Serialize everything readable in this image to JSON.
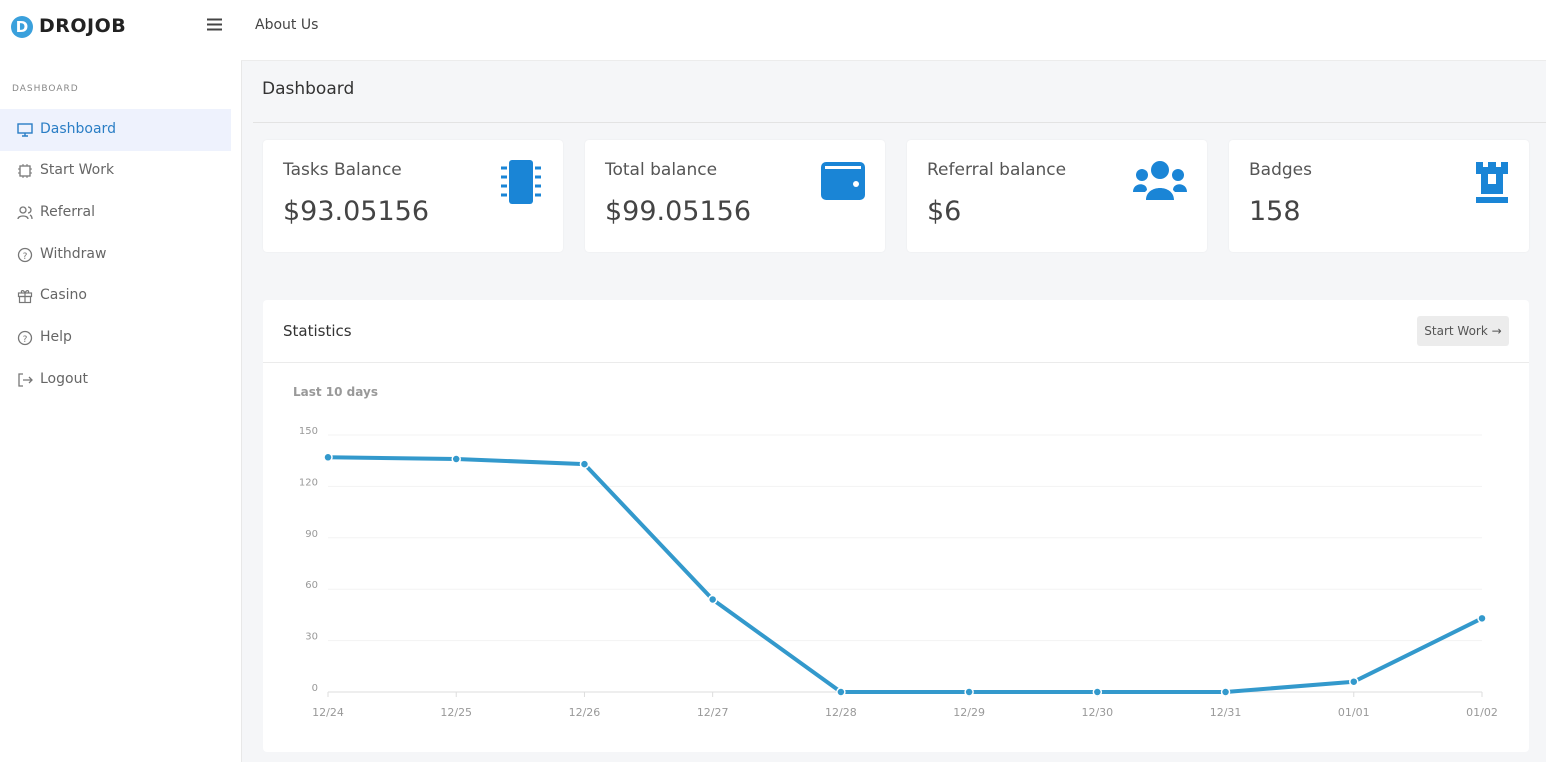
{
  "brand": "DROJOB",
  "top_nav": {
    "link": "About Us"
  },
  "sidebar": {
    "section": "DASHBOARD",
    "items": [
      "Dashboard",
      "Start Work",
      "Referral",
      "Withdraw",
      "Casino",
      "Help",
      "Logout"
    ]
  },
  "page_title": "Dashboard",
  "cards": [
    {
      "title": "Tasks Balance",
      "value": "$93.05156"
    },
    {
      "title": "Total balance",
      "value": "$99.05156"
    },
    {
      "title": "Referral balance",
      "value": "$6"
    },
    {
      "title": "Badges",
      "value": 158
    }
  ],
  "statistics": {
    "title": "Statistics",
    "button": "Start Work"
  },
  "chart_data": {
    "type": "line",
    "title": "Last 10 days",
    "categories": [
      "12/24",
      "12/25",
      "12/26",
      "12/27",
      "12/28",
      "12/29",
      "12/30",
      "12/31",
      "01/01",
      "01/02"
    ],
    "values": [
      137,
      136,
      133,
      54,
      0,
      0,
      0,
      0,
      6,
      43
    ],
    "color": "#3399cc",
    "ylim": [
      0,
      150
    ],
    "yticks": [
      0,
      30,
      60,
      90,
      120,
      150
    ],
    "grid": true
  }
}
